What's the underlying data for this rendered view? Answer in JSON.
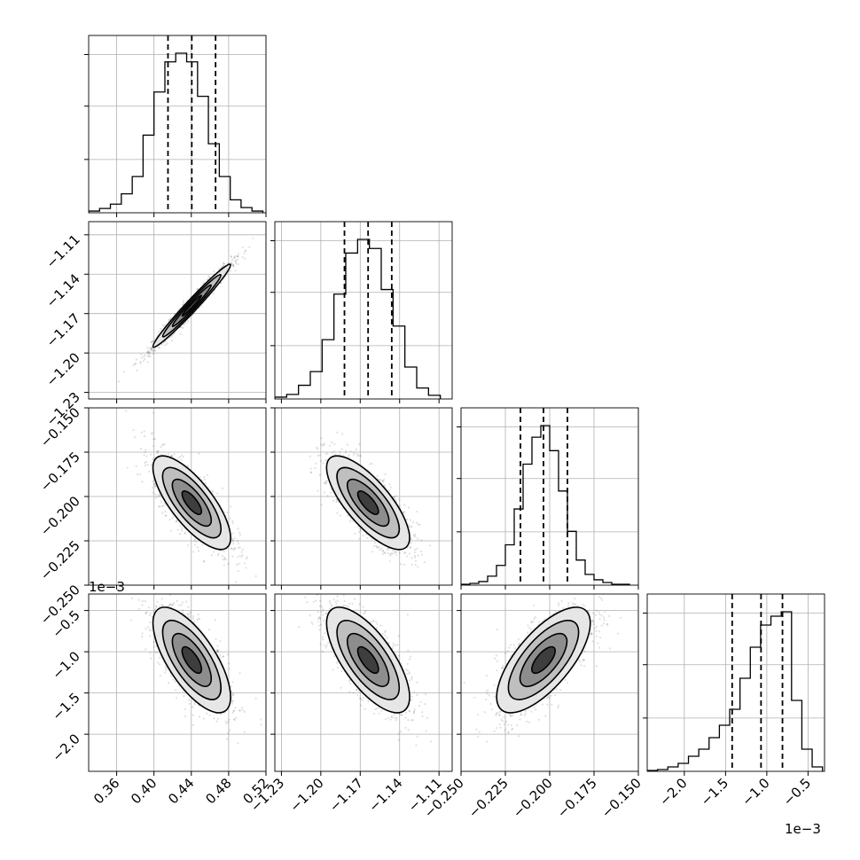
{
  "chart_data": {
    "type": "corner",
    "grid": true,
    "parameters": [
      {
        "range": [
          0.33,
          0.52
        ],
        "xticks": [
          0.36,
          0.4,
          0.44,
          0.48,
          0.52
        ],
        "xtick_labels": [
          "0.36",
          "0.40",
          "0.44",
          "0.48",
          "0.52"
        ],
        "yticks": [],
        "ytick_labels": [],
        "quantiles": [
          0.415,
          0.4405,
          0.466
        ],
        "hist_bins": [
          0.33,
          0.3417,
          0.3533,
          0.365,
          0.3767,
          0.3883,
          0.4,
          0.4117,
          0.4233,
          0.435,
          0.4467,
          0.4583,
          0.47,
          0.4817,
          0.4933,
          0.505,
          0.5167
        ],
        "hist_counts": [
          2,
          5,
          10,
          22,
          42,
          90,
          140,
          175,
          185,
          175,
          135,
          80,
          42,
          15,
          6,
          2
        ]
      },
      {
        "range": [
          -1.235,
          -1.1
        ],
        "xticks": [
          -1.23,
          -1.2,
          -1.17,
          -1.14,
          -1.11
        ],
        "xtick_labels": [
          "−1.23",
          "−1.20",
          "−1.17",
          "−1.14",
          "−1.11"
        ],
        "yticks": [
          -1.23,
          -1.2,
          -1.17,
          -1.14,
          -1.11
        ],
        "ytick_labels": [
          "−1.23",
          "−1.20",
          "−1.17",
          "−1.14",
          "−1.11"
        ],
        "quantiles": [
          -1.182,
          -1.164,
          -1.146
        ],
        "hist_bins": [
          -1.235,
          -1.226,
          -1.217,
          -1.208,
          -1.199,
          -1.19,
          -1.181,
          -1.172,
          -1.163,
          -1.154,
          -1.145,
          -1.136,
          -1.127,
          -1.118,
          -1.109
        ],
        "hist_counts": [
          2,
          5,
          15,
          30,
          65,
          115,
          160,
          175,
          165,
          120,
          80,
          35,
          12,
          4
        ]
      },
      {
        "range": [
          -0.25,
          -0.15
        ],
        "xticks": [
          -0.25,
          -0.225,
          -0.2,
          -0.175,
          -0.15
        ],
        "xtick_labels": [
          "−0.250",
          "−0.225",
          "−0.200",
          "−0.175",
          "−0.150"
        ],
        "yticks": [
          -0.25,
          -0.225,
          -0.2,
          -0.175,
          -0.15
        ],
        "ytick_labels": [
          "−0.250",
          "−0.225",
          "−0.200",
          "−0.175",
          "−0.150"
        ],
        "quantiles": [
          -0.2165,
          -0.2035,
          -0.19
        ],
        "hist_bins": [
          -0.25,
          -0.245,
          -0.24,
          -0.235,
          -0.23,
          -0.225,
          -0.22,
          -0.215,
          -0.21,
          -0.205,
          -0.2,
          -0.195,
          -0.19,
          -0.185,
          -0.18,
          -0.175,
          -0.17,
          -0.165,
          -0.16,
          -0.155
        ],
        "hist_counts": [
          1,
          2,
          4,
          10,
          22,
          45,
          85,
          135,
          165,
          178,
          150,
          105,
          60,
          28,
          12,
          6,
          3,
          1,
          1
        ]
      },
      {
        "range": [
          -2.45,
          -0.3
        ],
        "offset_label": "1e−3",
        "xticks": [
          -2.0,
          -1.5,
          -1.0,
          -0.5
        ],
        "xtick_labels": [
          "−2.0",
          "−1.5",
          "−1.0",
          "−0.5"
        ],
        "yticks": [
          -2.0,
          -1.5,
          -1.0,
          -0.5
        ],
        "ytick_labels": [
          "−2.0",
          "−1.5",
          "−1.0",
          "−0.5"
        ],
        "quantiles": [
          -1.42,
          -1.07,
          -0.81
        ],
        "hist_bins": [
          -2.45,
          -2.325,
          -2.2,
          -2.075,
          -1.95,
          -1.825,
          -1.7,
          -1.575,
          -1.45,
          -1.325,
          -1.2,
          -1.075,
          -0.95,
          -0.825,
          -0.7,
          -0.575,
          -0.45,
          -0.325
        ],
        "hist_counts": [
          1,
          2,
          5,
          9,
          17,
          25,
          38,
          52,
          70,
          105,
          140,
          165,
          175,
          180,
          80,
          25,
          5
        ]
      }
    ],
    "pairs": [
      {
        "row": 1,
        "col": 0,
        "mean": [
          0.4405,
          -1.164
        ],
        "sd": [
          0.0208,
          0.0158
        ],
        "rho": 0.98
      },
      {
        "row": 2,
        "col": 0,
        "mean": [
          0.4405,
          -0.2035
        ],
        "sd": [
          0.0208,
          0.0132
        ],
        "rho": -0.75
      },
      {
        "row": 2,
        "col": 1,
        "mean": [
          -1.164,
          -0.2035
        ],
        "sd": [
          0.0158,
          0.0132
        ],
        "rho": -0.75
      },
      {
        "row": 3,
        "col": 0,
        "mean": [
          0.4405,
          -1.1
        ],
        "sd": [
          0.0208,
          0.32
        ],
        "rho": -0.7
      },
      {
        "row": 3,
        "col": 1,
        "mean": [
          -1.164,
          -1.1
        ],
        "sd": [
          0.0158,
          0.32
        ],
        "rho": -0.7
      },
      {
        "row": 3,
        "col": 2,
        "mean": [
          -0.2035,
          -1.1
        ],
        "sd": [
          0.0132,
          0.32
        ],
        "rho": 0.7
      }
    ],
    "contour_levels_sigma": [
      0.5,
      1.0,
      1.5,
      2.0
    ],
    "colors": {
      "hist": "#000000",
      "points": "#000000",
      "grid": "#b0b0b0",
      "contour": "#000000"
    }
  }
}
